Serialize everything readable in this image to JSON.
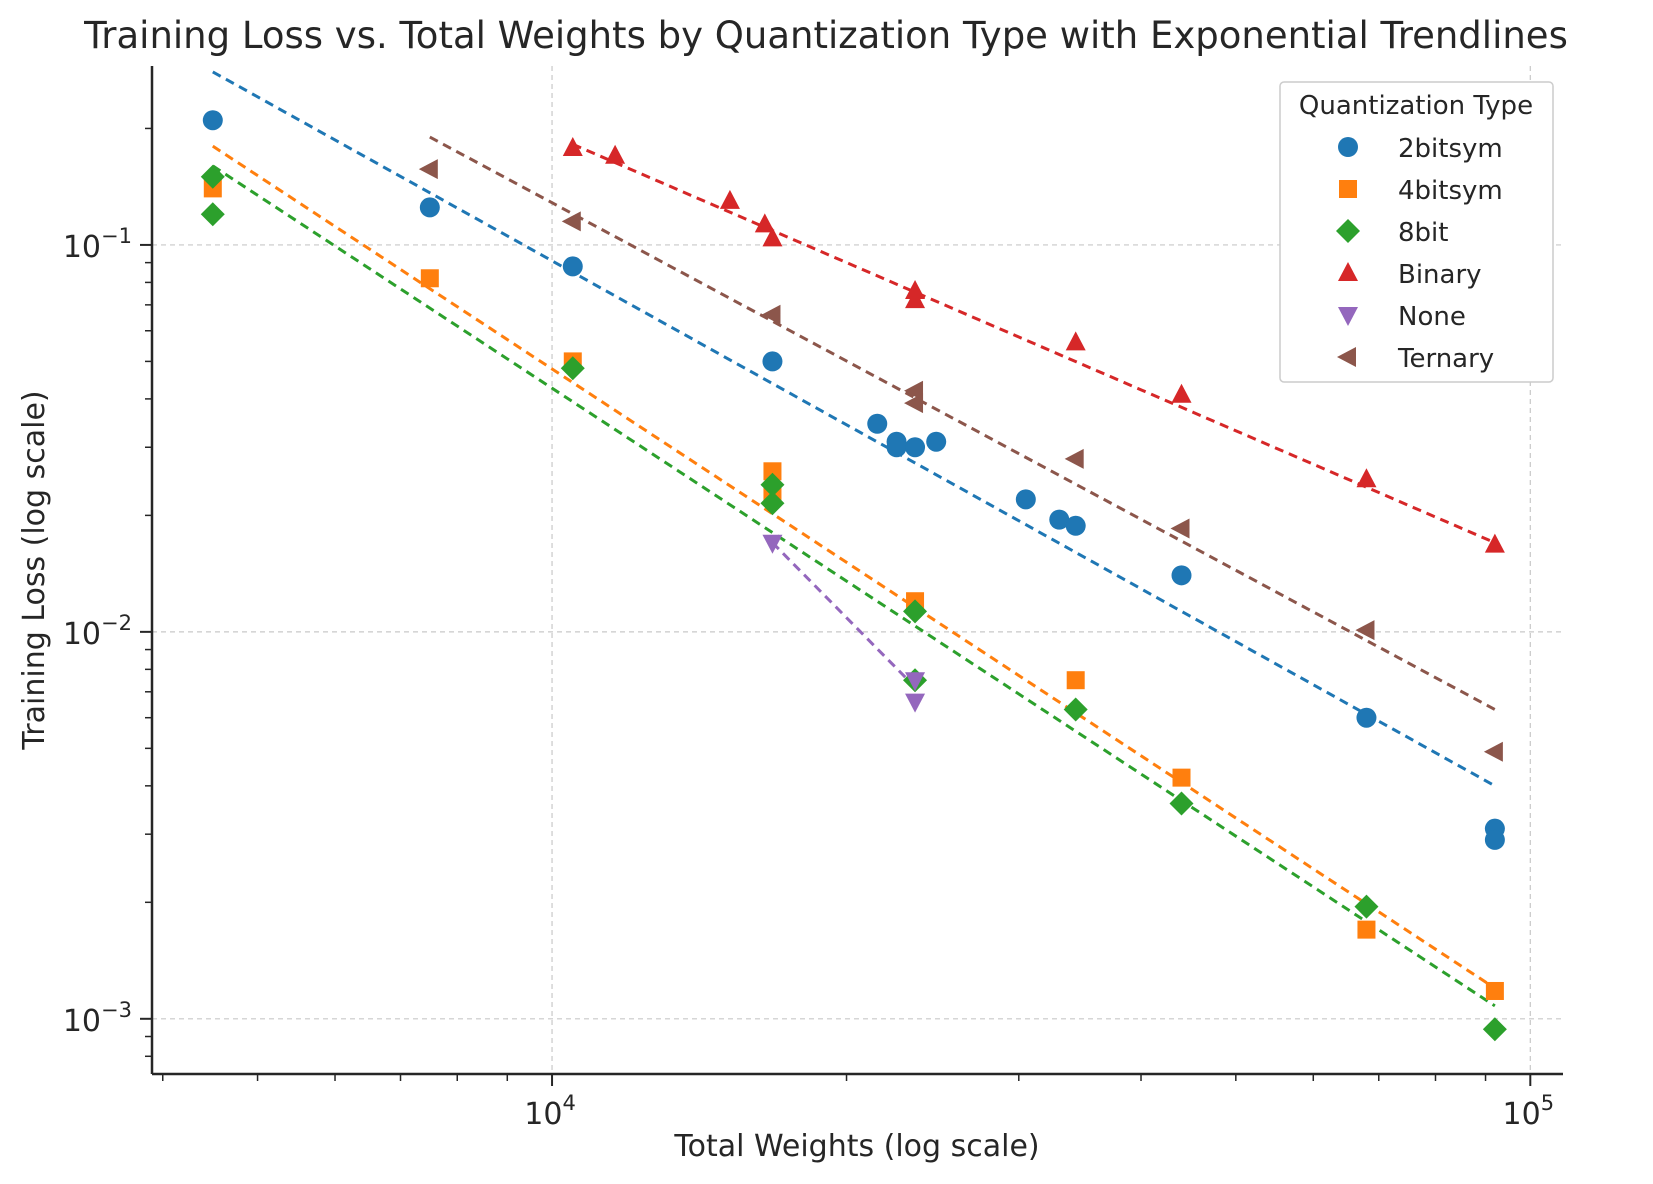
{
  "chart_data": {
    "type": "scatter",
    "title": "Training Loss vs. Total Weights by Quantization Type with Exponential Trendlines",
    "xlabel": "Total Weights (log scale)",
    "ylabel": "Training Loss (log scale)",
    "xscale": "log",
    "yscale": "log",
    "xlim": [
      3900,
      108000
    ],
    "ylim": [
      0.00072,
      0.29
    ],
    "x_ticks": [
      {
        "base": "10",
        "exp": "4",
        "value": 10000
      },
      {
        "base": "10",
        "exp": "5",
        "value": 100000
      }
    ],
    "y_ticks": [
      {
        "base": "10",
        "exp": "−1",
        "value": 0.1
      },
      {
        "base": "10",
        "exp": "−2",
        "value": 0.01
      },
      {
        "base": "10",
        "exp": "−3",
        "value": 0.001
      }
    ],
    "grid": true,
    "legend": {
      "title": "Quantization Type",
      "position": "top-right"
    },
    "series": [
      {
        "name": "2bitsym",
        "color": "#1f77b4",
        "marker": "circle",
        "points": [
          [
            4500,
            0.21
          ],
          [
            7500,
            0.125
          ],
          [
            10500,
            0.088
          ],
          [
            16800,
            0.05
          ],
          [
            21500,
            0.0345
          ],
          [
            22500,
            0.031
          ],
          [
            22500,
            0.03
          ],
          [
            23500,
            0.03
          ],
          [
            24700,
            0.031
          ],
          [
            30500,
            0.022
          ],
          [
            33000,
            0.0195
          ],
          [
            34300,
            0.0188
          ],
          [
            44000,
            0.014
          ],
          [
            68000,
            0.006
          ],
          [
            92000,
            0.0031
          ],
          [
            92000,
            0.0029
          ]
        ],
        "trend": [
          [
            4500,
            0.28
          ],
          [
            92000,
            0.004
          ]
        ]
      },
      {
        "name": "4bitsym",
        "color": "#ff7f0e",
        "marker": "square",
        "points": [
          [
            4500,
            0.14
          ],
          [
            7500,
            0.082
          ],
          [
            10500,
            0.05
          ],
          [
            16800,
            0.026
          ],
          [
            16800,
            0.023
          ],
          [
            23500,
            0.012
          ],
          [
            34300,
            0.0075
          ],
          [
            44000,
            0.0042
          ],
          [
            68000,
            0.0017
          ],
          [
            92000,
            0.00118
          ]
        ],
        "trend": [
          [
            4500,
            0.18
          ],
          [
            92000,
            0.0012
          ]
        ]
      },
      {
        "name": "8bit",
        "color": "#2ca02c",
        "marker": "diamond",
        "points": [
          [
            4500,
            0.15
          ],
          [
            4500,
            0.12
          ],
          [
            10500,
            0.048
          ],
          [
            16800,
            0.024
          ],
          [
            16800,
            0.0215
          ],
          [
            23500,
            0.0113
          ],
          [
            23500,
            0.0075
          ],
          [
            34300,
            0.0063
          ],
          [
            44000,
            0.0036
          ],
          [
            68000,
            0.00195
          ],
          [
            92000,
            0.00094
          ]
        ],
        "trend": [
          [
            4500,
            0.16
          ],
          [
            92000,
            0.00108
          ]
        ]
      },
      {
        "name": "Binary",
        "color": "#d62728",
        "marker": "triangle-up",
        "points": [
          [
            10500,
            0.178
          ],
          [
            11600,
            0.17
          ],
          [
            15200,
            0.13
          ],
          [
            16500,
            0.113
          ],
          [
            16800,
            0.104
          ],
          [
            23500,
            0.076
          ],
          [
            23500,
            0.072
          ],
          [
            34300,
            0.056
          ],
          [
            44000,
            0.041
          ],
          [
            68000,
            0.0248
          ],
          [
            92000,
            0.0168
          ]
        ],
        "trend": [
          [
            10500,
            0.182
          ],
          [
            92000,
            0.017
          ]
        ]
      },
      {
        "name": "None",
        "color": "#9467bd",
        "marker": "triangle-down",
        "points": [
          [
            16800,
            0.017
          ],
          [
            23500,
            0.0075
          ],
          [
            23500,
            0.0066
          ]
        ],
        "trend": [
          [
            16800,
            0.017
          ],
          [
            23500,
            0.0072
          ]
        ]
      },
      {
        "name": "Ternary",
        "color": "#8c564b",
        "marker": "triangle-left",
        "points": [
          [
            7500,
            0.157
          ],
          [
            10500,
            0.115
          ],
          [
            16800,
            0.066
          ],
          [
            23500,
            0.042
          ],
          [
            23500,
            0.039
          ],
          [
            34300,
            0.028
          ],
          [
            44000,
            0.0185
          ],
          [
            68000,
            0.0101
          ],
          [
            92000,
            0.0049
          ]
        ],
        "trend": [
          [
            7500,
            0.19
          ],
          [
            92000,
            0.0063
          ]
        ]
      }
    ]
  }
}
